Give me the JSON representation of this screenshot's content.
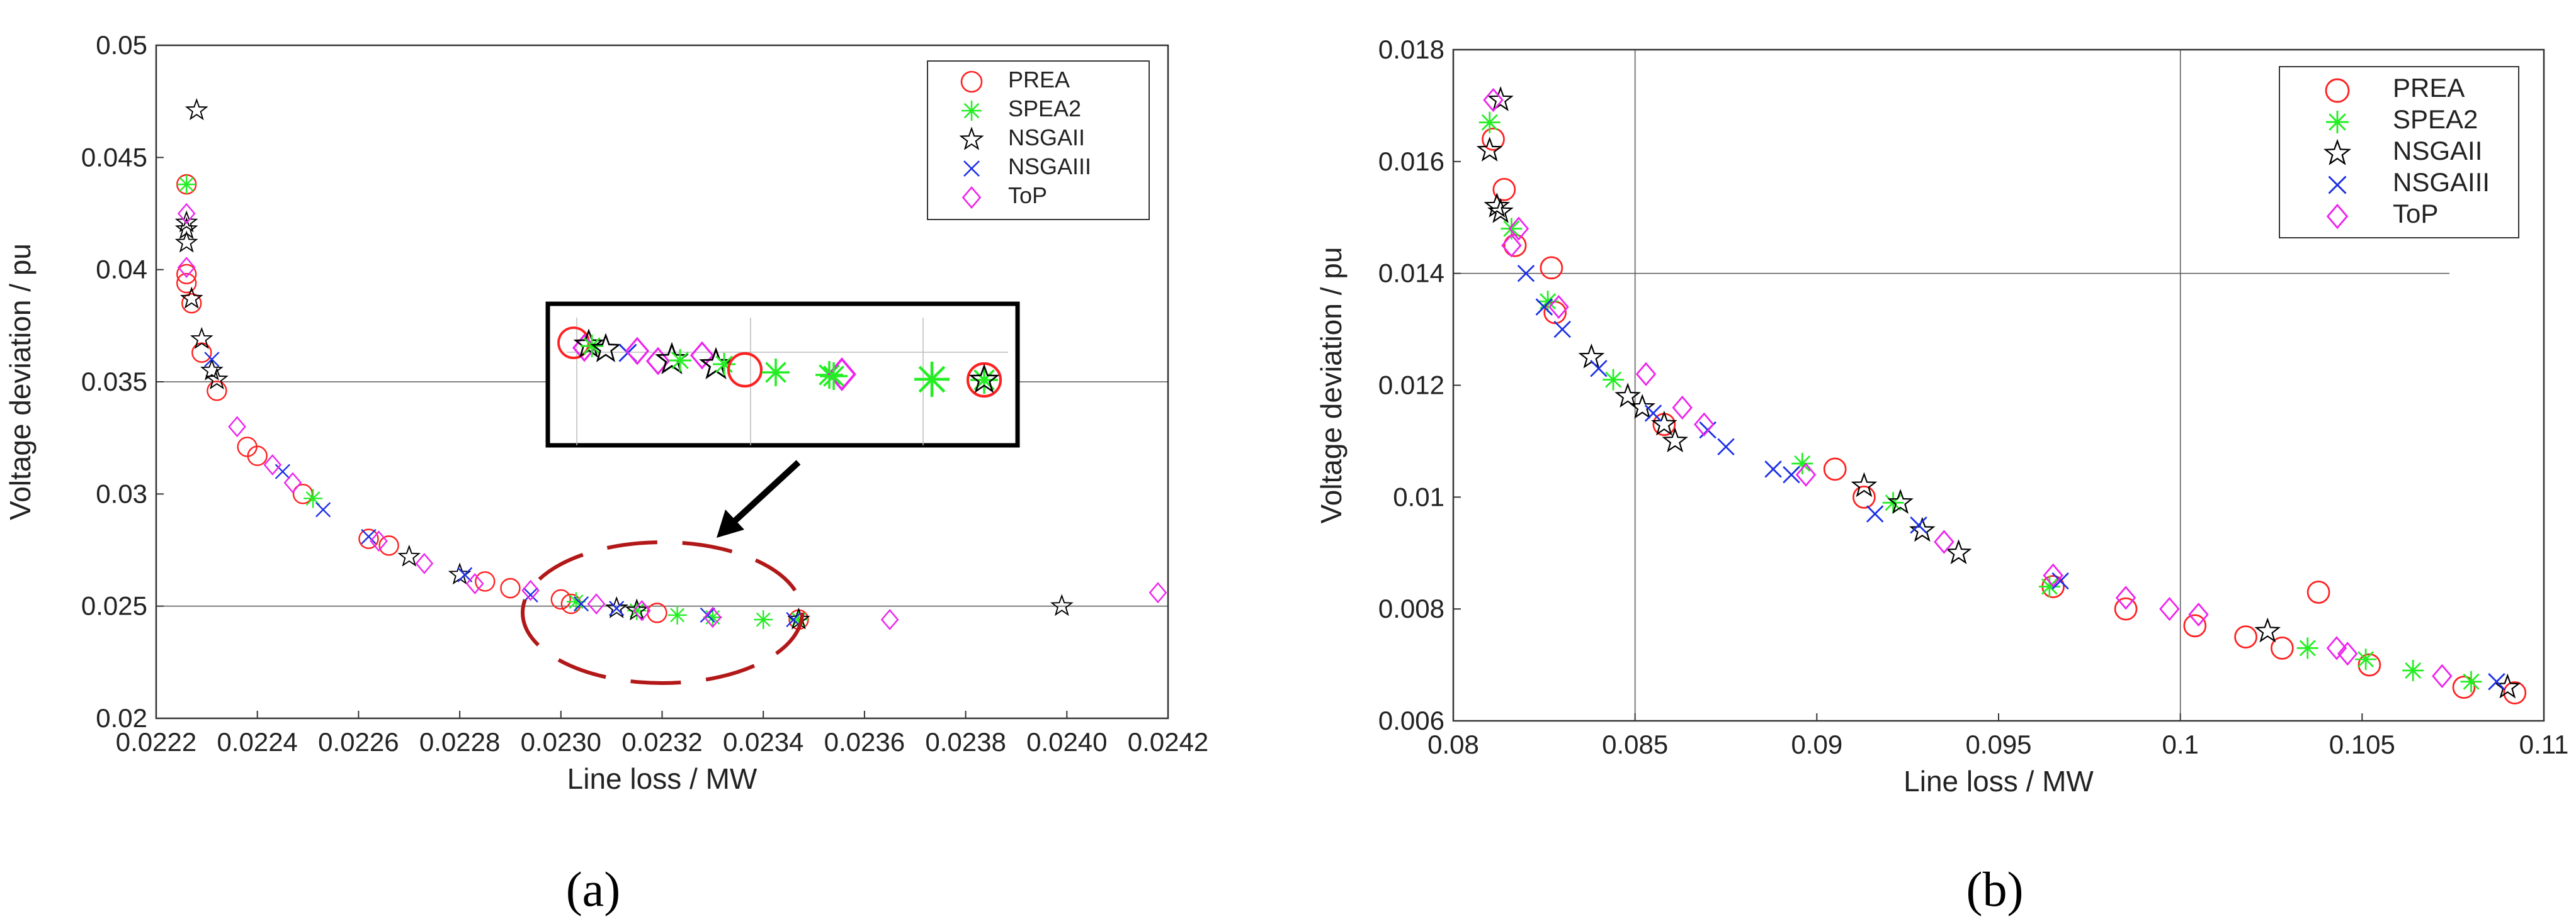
{
  "chart_data": [
    {
      "type": "scatter",
      "panel_label": "(a)",
      "xlabel": "Line loss / MW",
      "ylabel": "Voltage deviation / pu",
      "xlim": [
        0.0222,
        0.0242
      ],
      "ylim": [
        0.02,
        0.05
      ],
      "xticks": [
        0.0222,
        0.0224,
        0.0226,
        0.0228,
        0.023,
        0.0232,
        0.0234,
        0.0236,
        0.0238,
        0.024,
        0.0242
      ],
      "xtick_labels": [
        "0.0222",
        "0.0224",
        "0.0226",
        "0.0228",
        "0.0230",
        "0.0232",
        "0.0234",
        "0.0236",
        "0.0238",
        "0.0240",
        "0.0242"
      ],
      "yticks": [
        0.02,
        0.025,
        0.03,
        0.035,
        0.04,
        0.045,
        0.05
      ],
      "ytick_labels": [
        "0.02",
        "0.025",
        "0.03",
        "0.035",
        "0.04",
        "0.045",
        "0.05"
      ],
      "gridlines_y": [
        0.025,
        0.035
      ],
      "legend_position": "top-right",
      "legend": [
        "PREA",
        "SPEA2",
        "NSGAII",
        "NSGAIII",
        "ToP"
      ],
      "annotation": "zoomed inset of the region 0.0230–0.0235 line loss near 0.0245 pu",
      "series": [
        {
          "name": "PREA",
          "marker": "circle",
          "color": "#ff2020",
          "points": [
            [
              0.02226,
              0.0438
            ],
            [
              0.02226,
              0.0398
            ],
            [
              0.02226,
              0.0394
            ],
            [
              0.02227,
              0.0385
            ],
            [
              0.02229,
              0.0363
            ],
            [
              0.02232,
              0.0346
            ],
            [
              0.02238,
              0.0321
            ],
            [
              0.0224,
              0.0317
            ],
            [
              0.02249,
              0.03
            ],
            [
              0.02262,
              0.028
            ],
            [
              0.02266,
              0.0277
            ],
            [
              0.02285,
              0.0261
            ],
            [
              0.0229,
              0.0258
            ],
            [
              0.023,
              0.0253
            ],
            [
              0.02302,
              0.0251
            ],
            [
              0.02319,
              0.0247
            ],
            [
              0.02347,
              0.0244
            ]
          ]
        },
        {
          "name": "SPEA2",
          "marker": "asterisk",
          "color": "#22ee22",
          "points": [
            [
              0.02226,
              0.0438
            ],
            [
              0.02251,
              0.0298
            ],
            [
              0.02303,
              0.0252
            ],
            [
              0.02315,
              0.0248
            ],
            [
              0.02323,
              0.0246
            ],
            [
              0.0233,
              0.0245
            ],
            [
              0.0234,
              0.0244
            ],
            [
              0.02347,
              0.0244
            ]
          ]
        },
        {
          "name": "NSGAII",
          "marker": "star",
          "color": "#000000",
          "points": [
            [
              0.02228,
              0.0471
            ],
            [
              0.02226,
              0.0421
            ],
            [
              0.02226,
              0.0418
            ],
            [
              0.02226,
              0.0412
            ],
            [
              0.02227,
              0.0387
            ],
            [
              0.02229,
              0.0369
            ],
            [
              0.02231,
              0.0355
            ],
            [
              0.02232,
              0.0351
            ],
            [
              0.0227,
              0.0272
            ],
            [
              0.0228,
              0.0264
            ],
            [
              0.02311,
              0.0249
            ],
            [
              0.02315,
              0.0248
            ],
            [
              0.02347,
              0.0244
            ],
            [
              0.02399,
              0.025
            ]
          ]
        },
        {
          "name": "NSGAIII",
          "marker": "x",
          "color": "#1a2ee6",
          "points": [
            [
              0.02231,
              0.036
            ],
            [
              0.02245,
              0.031
            ],
            [
              0.02253,
              0.0293
            ],
            [
              0.02262,
              0.0281
            ],
            [
              0.02281,
              0.0264
            ],
            [
              0.02294,
              0.0255
            ],
            [
              0.02304,
              0.0251
            ],
            [
              0.02311,
              0.0249
            ],
            [
              0.02329,
              0.0246
            ],
            [
              0.02346,
              0.0244
            ]
          ]
        },
        {
          "name": "ToP",
          "marker": "diamond",
          "color": "#ee22ee",
          "points": [
            [
              0.02226,
              0.0425
            ],
            [
              0.02226,
              0.0401
            ],
            [
              0.02236,
              0.033
            ],
            [
              0.02243,
              0.0313
            ],
            [
              0.02247,
              0.0305
            ],
            [
              0.02264,
              0.0279
            ],
            [
              0.02273,
              0.0269
            ],
            [
              0.02283,
              0.026
            ],
            [
              0.02294,
              0.0257
            ],
            [
              0.02307,
              0.0251
            ],
            [
              0.02316,
              0.0248
            ],
            [
              0.0233,
              0.0245
            ],
            [
              0.02365,
              0.0244
            ],
            [
              0.02418,
              0.0256
            ]
          ]
        }
      ]
    },
    {
      "type": "scatter",
      "panel_label": "(b)",
      "xlabel": "Line loss / MW",
      "ylabel": "Voltage deviation / pu",
      "xlim": [
        0.08,
        0.11
      ],
      "ylim": [
        0.006,
        0.018
      ],
      "xticks": [
        0.08,
        0.085,
        0.09,
        0.095,
        0.1,
        0.105,
        0.11
      ],
      "xtick_labels": [
        "0.08",
        "0.085",
        "0.09",
        "0.095",
        "0.1",
        "0.105",
        "0.11"
      ],
      "yticks": [
        0.006,
        0.008,
        0.01,
        0.012,
        0.014,
        0.016,
        0.018
      ],
      "ytick_labels": [
        "0.006",
        "0.008",
        "0.01",
        "0.012",
        "0.014",
        "0.016",
        "0.018"
      ],
      "gridlines_x": [
        0.085,
        0.1
      ],
      "gridlines_y": [
        0.014
      ],
      "legend_position": "top-right",
      "legend": [
        "PREA",
        "SPEA2",
        "NSGAII",
        "NSGAIII",
        "ToP"
      ],
      "series": [
        {
          "name": "PREA",
          "marker": "circle",
          "color": "#ff2020",
          "points": [
            [
              0.0811,
              0.0164
            ],
            [
              0.0814,
              0.0155
            ],
            [
              0.0817,
              0.0145
            ],
            [
              0.0827,
              0.0141
            ],
            [
              0.0828,
              0.0133
            ],
            [
              0.0858,
              0.0113
            ],
            [
              0.0905,
              0.0105
            ],
            [
              0.0913,
              0.01
            ],
            [
              0.0965,
              0.0084
            ],
            [
              0.0985,
              0.008
            ],
            [
              0.1004,
              0.0077
            ],
            [
              0.1018,
              0.0075
            ],
            [
              0.1028,
              0.0073
            ],
            [
              0.1038,
              0.0083
            ],
            [
              0.1052,
              0.007
            ],
            [
              0.1078,
              0.0066
            ],
            [
              0.1092,
              0.0065
            ]
          ]
        },
        {
          "name": "SPEA2",
          "marker": "asterisk",
          "color": "#22ee22",
          "points": [
            [
              0.081,
              0.0167
            ],
            [
              0.0816,
              0.0148
            ],
            [
              0.0826,
              0.0135
            ],
            [
              0.0844,
              0.0121
            ],
            [
              0.0896,
              0.0106
            ],
            [
              0.0921,
              0.0099
            ],
            [
              0.0964,
              0.0084
            ],
            [
              0.1035,
              0.0073
            ],
            [
              0.1051,
              0.0071
            ],
            [
              0.1064,
              0.0069
            ],
            [
              0.108,
              0.0067
            ]
          ]
        },
        {
          "name": "NSGAII",
          "marker": "star",
          "color": "#000000",
          "points": [
            [
              0.0813,
              0.0171
            ],
            [
              0.081,
              0.0162
            ],
            [
              0.0812,
              0.0152
            ],
            [
              0.0813,
              0.0151
            ],
            [
              0.0838,
              0.0125
            ],
            [
              0.0848,
              0.0118
            ],
            [
              0.0852,
              0.0116
            ],
            [
              0.0858,
              0.0113
            ],
            [
              0.0861,
              0.011
            ],
            [
              0.0913,
              0.0102
            ],
            [
              0.0923,
              0.0099
            ],
            [
              0.0929,
              0.0094
            ],
            [
              0.0939,
              0.009
            ],
            [
              0.1024,
              0.0076
            ],
            [
              0.109,
              0.0066
            ]
          ]
        },
        {
          "name": "NSGAIII",
          "marker": "x",
          "color": "#1a2ee6",
          "points": [
            [
              0.082,
              0.014
            ],
            [
              0.0825,
              0.0134
            ],
            [
              0.083,
              0.013
            ],
            [
              0.084,
              0.0123
            ],
            [
              0.0855,
              0.0115
            ],
            [
              0.087,
              0.0112
            ],
            [
              0.0875,
              0.0109
            ],
            [
              0.0888,
              0.0105
            ],
            [
              0.0893,
              0.0104
            ],
            [
              0.0916,
              0.0097
            ],
            [
              0.0928,
              0.0095
            ],
            [
              0.0967,
              0.0085
            ],
            [
              0.1087,
              0.0067
            ]
          ]
        },
        {
          "name": "ToP",
          "marker": "diamond",
          "color": "#ee22ee",
          "points": [
            [
              0.0811,
              0.0171
            ],
            [
              0.0816,
              0.0145
            ],
            [
              0.0818,
              0.0148
            ],
            [
              0.0829,
              0.0134
            ],
            [
              0.0853,
              0.0122
            ],
            [
              0.0863,
              0.0116
            ],
            [
              0.0869,
              0.0113
            ],
            [
              0.0897,
              0.0104
            ],
            [
              0.0935,
              0.0092
            ],
            [
              0.0965,
              0.0086
            ],
            [
              0.0985,
              0.0082
            ],
            [
              0.0997,
              0.008
            ],
            [
              0.1005,
              0.0079
            ],
            [
              0.1043,
              0.0073
            ],
            [
              0.1046,
              0.0072
            ],
            [
              0.1072,
              0.0068
            ]
          ]
        }
      ]
    }
  ]
}
